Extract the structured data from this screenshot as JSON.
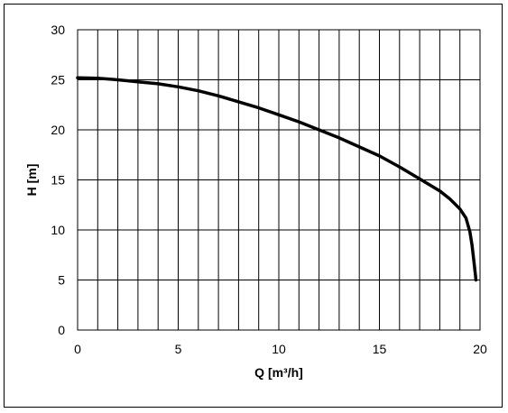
{
  "chart_data": {
    "type": "line",
    "title": "",
    "xlabel": "Q [m³/h]",
    "ylabel": "H [m]",
    "xlim": [
      0,
      20
    ],
    "ylim": [
      0,
      30
    ],
    "x_ticks": [
      0,
      5,
      10,
      15,
      20
    ],
    "y_ticks": [
      0,
      5,
      10,
      15,
      20,
      25,
      30
    ],
    "x_grid_step": 1,
    "y_grid_step": 5,
    "grid": true,
    "legend": "none",
    "colors": {
      "line": "#000000",
      "grid": "#000000",
      "background": "#ffffff"
    },
    "series": [
      {
        "x": [
          0,
          1,
          2,
          3,
          4,
          5,
          6,
          7,
          8,
          9,
          10,
          11,
          12,
          13,
          14,
          15,
          16,
          17,
          18,
          18.5,
          19,
          19.3,
          19.5,
          19.6,
          19.7,
          19.8
        ],
        "y": [
          25.2,
          25.15,
          25.0,
          24.8,
          24.6,
          24.3,
          23.9,
          23.4,
          22.8,
          22.2,
          21.5,
          20.8,
          20.0,
          19.2,
          18.3,
          17.4,
          16.3,
          15.1,
          13.9,
          13.1,
          12.1,
          11.2,
          9.8,
          8.5,
          6.8,
          5.0
        ]
      }
    ]
  }
}
